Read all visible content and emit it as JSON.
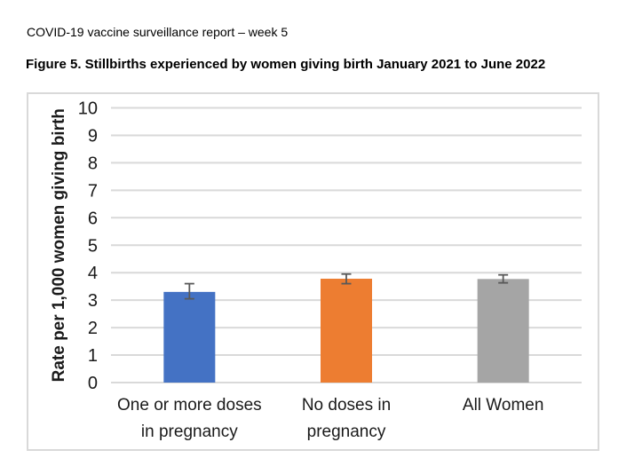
{
  "page": {
    "header": "COVID-19 vaccine surveillance report – week 5",
    "figure_title": "Figure 5. Stillbirths experienced by women giving birth January 2021 to June 2022"
  },
  "chart_data": {
    "type": "bar",
    "title": "Figure 5. Stillbirths experienced by women giving birth January 2021 to June 2022",
    "categories": [
      "One or more doses\nin pregnancy",
      "No doses in\npregnancy",
      "All Women"
    ],
    "values": [
      3.3,
      3.78,
      3.77
    ],
    "error_bars": [
      {
        "low": 3.05,
        "high": 3.6
      },
      {
        "low": 3.6,
        "high": 3.95
      },
      {
        "low": 3.63,
        "high": 3.92
      }
    ],
    "bar_colors": [
      "#4472C4",
      "#ED7D31",
      "#A5A5A5"
    ],
    "ylabel": "Rate per 1,000 women giving birth",
    "xlabel": "",
    "ylim": [
      0,
      10
    ],
    "yticks": [
      0,
      1,
      2,
      3,
      4,
      5,
      6,
      7,
      8,
      9,
      10
    ],
    "grid": true,
    "legend": false,
    "colors": {
      "gridline": "#D9D9D9",
      "error_bar": "#595959",
      "axis_text": "#1A1A1A",
      "chart_border": "#D9D9D9"
    }
  }
}
